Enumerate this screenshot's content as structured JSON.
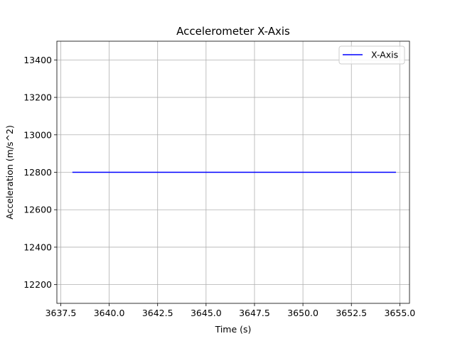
{
  "chart_data": {
    "type": "line",
    "title": "Accelerometer X-Axis",
    "xlabel": "Time (s)",
    "ylabel": "Acceleration (m/s^2)",
    "xlim": [
      3637.3,
      3655.5
    ],
    "ylim": [
      12100,
      13500
    ],
    "xticks": [
      3637.5,
      3640.0,
      3642.5,
      3645.0,
      3647.5,
      3650.0,
      3652.5,
      3655.0
    ],
    "xtick_labels": [
      "3637.5",
      "3640.0",
      "3642.5",
      "3645.0",
      "3647.5",
      "3650.0",
      "3652.5",
      "3655.0"
    ],
    "yticks": [
      12200,
      12400,
      12600,
      12800,
      13000,
      13200,
      13400
    ],
    "ytick_labels": [
      "12200",
      "12400",
      "12600",
      "12800",
      "13000",
      "13200",
      "13400"
    ],
    "grid": true,
    "legend_position": "top-right",
    "series": [
      {
        "name": "X-Axis",
        "color": "#0000ff",
        "x": [
          3638.1,
          3654.8
        ],
        "y": [
          12800,
          12800
        ]
      }
    ]
  }
}
